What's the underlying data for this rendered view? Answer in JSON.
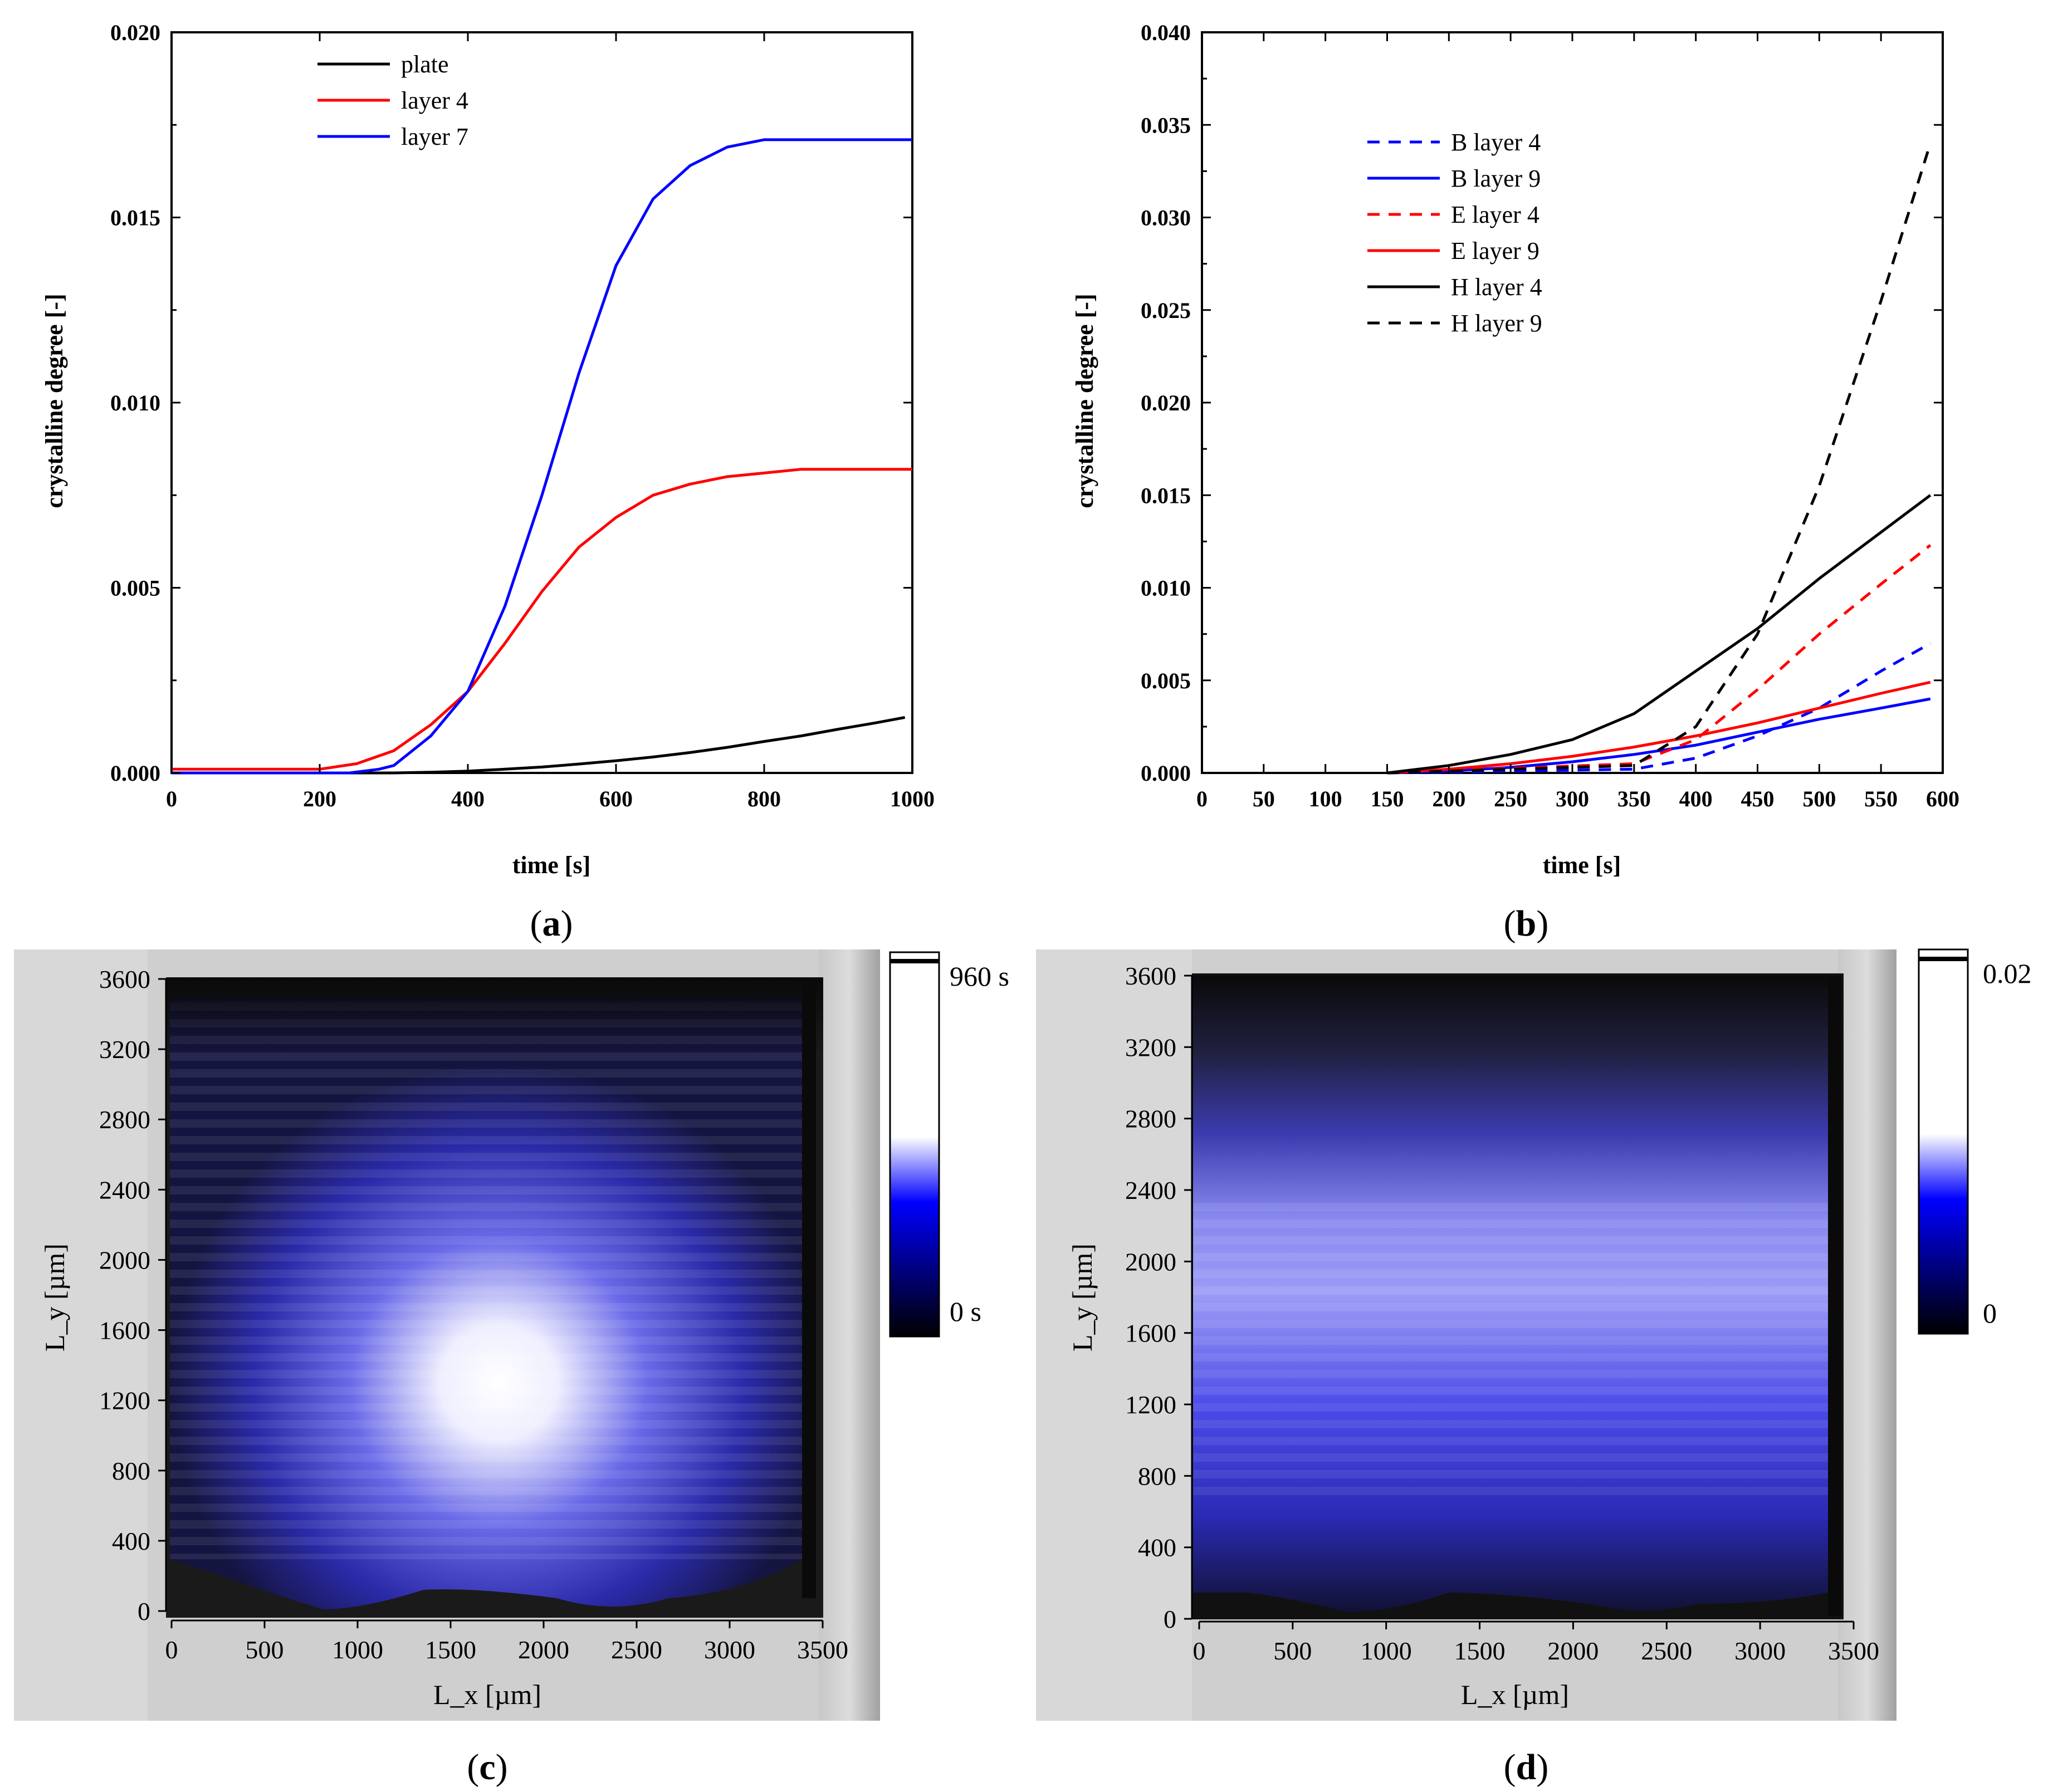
{
  "panels": {
    "a": {
      "label_open": "(",
      "label_letter": "a",
      "label_close": ")"
    },
    "b": {
      "label_open": "(",
      "label_letter": "b",
      "label_close": ")"
    },
    "c": {
      "label_open": "(",
      "label_letter": "c",
      "label_close": ")"
    },
    "d": {
      "label_open": "(",
      "label_letter": "d",
      "label_close": ")"
    }
  },
  "chart_data": [
    {
      "id": "a",
      "type": "line",
      "title": "",
      "xlabel": "time [s]",
      "ylabel": "crystalline degree [-]",
      "xlim": [
        0,
        1000
      ],
      "ylim": [
        0,
        0.02
      ],
      "xticks": [
        "0",
        "200",
        "400",
        "600",
        "800",
        "1000"
      ],
      "yticks": [
        "0.000",
        "0.005",
        "0.010",
        "0.015",
        "0.020"
      ],
      "legend_position": "top-left",
      "series": [
        {
          "name": "plate",
          "color": "#000000",
          "dash": "solid",
          "x": [
            0,
            200,
            300,
            350,
            400,
            450,
            500,
            550,
            600,
            650,
            700,
            750,
            800,
            850,
            900,
            950,
            990
          ],
          "y": [
            0,
            0,
            0,
            2e-05,
            5e-05,
            0.0001,
            0.00016,
            0.00024,
            0.00033,
            0.00043,
            0.00055,
            0.00069,
            0.00085,
            0.001,
            0.00118,
            0.00135,
            0.0015
          ]
        },
        {
          "name": "layer 4",
          "color": "#ff0000",
          "dash": "solid",
          "x": [
            0,
            200,
            250,
            300,
            350,
            400,
            450,
            500,
            550,
            600,
            650,
            700,
            750,
            800,
            850,
            900,
            1000
          ],
          "y": [
            0.0001,
            0.0001,
            0.00025,
            0.0006,
            0.0013,
            0.0022,
            0.0035,
            0.0049,
            0.0061,
            0.0069,
            0.0075,
            0.0078,
            0.008,
            0.0081,
            0.0082,
            0.0082,
            0.0082
          ]
        },
        {
          "name": "layer 7",
          "color": "#0000ff",
          "dash": "solid",
          "x": [
            0,
            240,
            280,
            300,
            350,
            400,
            450,
            500,
            550,
            600,
            650,
            700,
            750,
            800,
            850,
            900,
            1000
          ],
          "y": [
            0,
            0,
            0.0001,
            0.0002,
            0.001,
            0.0022,
            0.0045,
            0.0075,
            0.0108,
            0.0137,
            0.0155,
            0.0164,
            0.0169,
            0.0171,
            0.0171,
            0.0171,
            0.0171
          ]
        }
      ]
    },
    {
      "id": "b",
      "type": "line",
      "title": "",
      "xlabel": "time [s]",
      "ylabel": "crystalline degree [-]",
      "xlim": [
        0,
        600
      ],
      "ylim": [
        0,
        0.04
      ],
      "xticks": [
        "0",
        "50",
        "100",
        "150",
        "200",
        "250",
        "300",
        "350",
        "400",
        "450",
        "500",
        "550",
        "600"
      ],
      "yticks": [
        "0.000",
        "0.005",
        "0.010",
        "0.015",
        "0.020",
        "0.025",
        "0.030",
        "0.035",
        "0.040"
      ],
      "legend_position": "top-left",
      "series": [
        {
          "name": "B layer 4",
          "color": "#0000ff",
          "dash": "dashed",
          "x": [
            150,
            350,
            400,
            450,
            500,
            550,
            590
          ],
          "y": [
            0,
            0.0002,
            0.0008,
            0.002,
            0.0035,
            0.0055,
            0.007
          ]
        },
        {
          "name": "B layer 9",
          "color": "#0000ff",
          "dash": "solid",
          "x": [
            150,
            200,
            250,
            300,
            350,
            400,
            450,
            500,
            550,
            590
          ],
          "y": [
            0,
            0.0001,
            0.0003,
            0.0006,
            0.001,
            0.0015,
            0.0022,
            0.0029,
            0.0035,
            0.004
          ]
        },
        {
          "name": "E layer 4",
          "color": "#ff0000",
          "dash": "dashed",
          "x": [
            150,
            350,
            400,
            450,
            500,
            550,
            590
          ],
          "y": [
            0,
            0.0005,
            0.0018,
            0.0045,
            0.0075,
            0.0102,
            0.0123
          ]
        },
        {
          "name": "E layer 9",
          "color": "#ff0000",
          "dash": "solid",
          "x": [
            150,
            200,
            250,
            300,
            350,
            400,
            450,
            500,
            550,
            590
          ],
          "y": [
            0,
            0.0002,
            0.0005,
            0.0009,
            0.0014,
            0.002,
            0.0027,
            0.0035,
            0.0043,
            0.0049
          ]
        },
        {
          "name": "H layer 4",
          "color": "#000000",
          "dash": "solid",
          "x": [
            150,
            200,
            250,
            300,
            350,
            400,
            450,
            500,
            550,
            590
          ],
          "y": [
            0,
            0.0004,
            0.001,
            0.0018,
            0.0032,
            0.0055,
            0.0078,
            0.0105,
            0.013,
            0.015
          ]
        },
        {
          "name": "H layer 9",
          "color": "#000000",
          "dash": "dashed",
          "x": [
            150,
            350,
            400,
            450,
            500,
            550,
            590
          ],
          "y": [
            0,
            0.0004,
            0.0025,
            0.0075,
            0.0155,
            0.0255,
            0.034
          ]
        }
      ]
    },
    {
      "id": "c",
      "type": "heatmap",
      "xlabel": "L_x [µm]",
      "ylabel": "L_y [µm]",
      "xticks": [
        "0",
        "500",
        "1000",
        "1500",
        "2000",
        "2500",
        "3000",
        "3500"
      ],
      "yticks": [
        "0",
        "400",
        "800",
        "1200",
        "1600",
        "2000",
        "2400",
        "2800",
        "3200",
        "3600"
      ],
      "colorbar": {
        "max_label": "960 s",
        "min_label": "0 s",
        "colors": [
          "#000000",
          "#0000ff",
          "#ffffff"
        ]
      }
    },
    {
      "id": "d",
      "type": "heatmap",
      "xlabel": "L_x [µm]",
      "ylabel": "L_y [µm]",
      "xticks": [
        "0",
        "500",
        "1000",
        "1500",
        "2000",
        "2500",
        "3000",
        "3500"
      ],
      "yticks": [
        "0",
        "400",
        "800",
        "1200",
        "1600",
        "2000",
        "2400",
        "2800",
        "3200",
        "3600"
      ],
      "colorbar": {
        "max_label": "0.02",
        "min_label": "0",
        "colors": [
          "#000000",
          "#0000ff",
          "#ffffff"
        ]
      }
    }
  ]
}
